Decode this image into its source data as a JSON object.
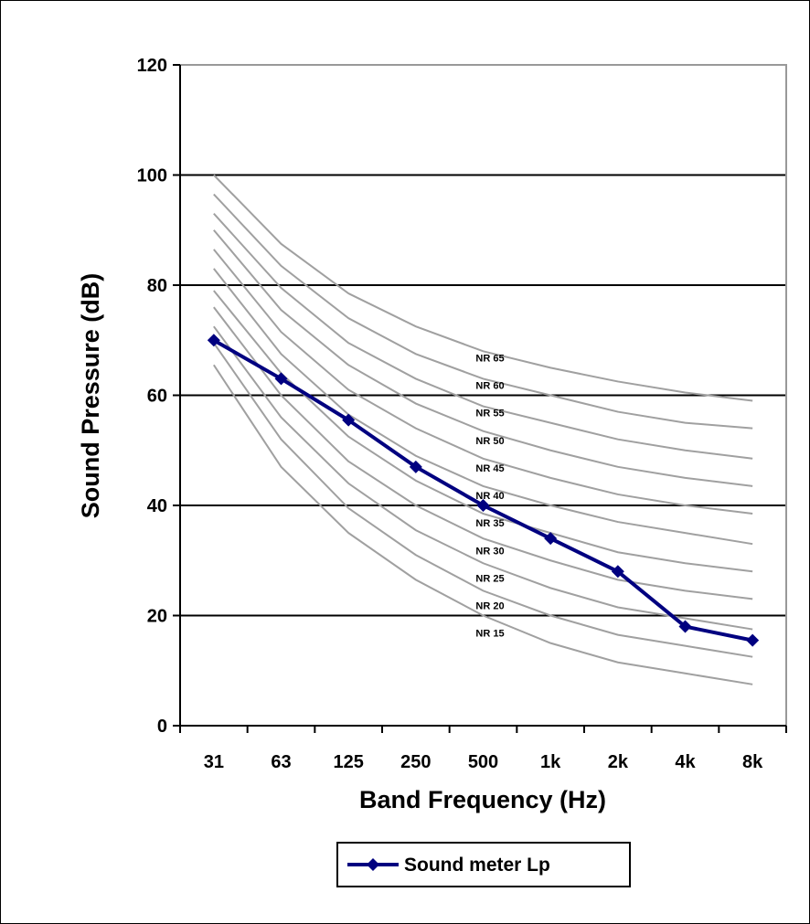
{
  "chart_data": {
    "type": "line",
    "xlabel": "Band Frequency (Hz)",
    "ylabel": "Sound Pressure (dB)",
    "categories": [
      "31",
      "63",
      "125",
      "250",
      "500",
      "1k",
      "2k",
      "4k",
      "8k"
    ],
    "ylim": [
      0,
      120
    ],
    "yticks": [
      "0",
      "20",
      "40",
      "60",
      "80",
      "100",
      "120"
    ],
    "grid": "horizontal major gridlines",
    "legend_position": "bottom",
    "series": [
      {
        "name": "Sound meter Lp",
        "values": [
          70,
          63,
          55.5,
          47,
          40,
          34,
          28,
          18,
          15.5
        ],
        "color": "#000080"
      }
    ],
    "reference_curves": [
      {
        "label": "NR 15",
        "values": [
          65.5,
          47,
          35,
          26.5,
          20,
          15,
          11.5,
          9.5,
          7.5
        ]
      },
      {
        "label": "NR 20",
        "values": [
          69.5,
          52,
          39.5,
          31,
          24.5,
          20,
          16.5,
          14.5,
          12.5
        ]
      },
      {
        "label": "NR 25",
        "values": [
          72.5,
          56,
          44,
          35.5,
          29.5,
          25,
          21.5,
          19.5,
          17.5
        ]
      },
      {
        "label": "NR 30",
        "values": [
          76,
          60,
          48,
          40,
          34,
          30,
          26.5,
          24.5,
          23
        ]
      },
      {
        "label": "NR 35",
        "values": [
          79,
          64,
          52.5,
          44.5,
          38.5,
          35,
          31.5,
          29.5,
          28
        ]
      },
      {
        "label": "NR 40",
        "values": [
          83,
          67.5,
          56.5,
          49,
          43.5,
          40,
          37,
          35,
          33
        ]
      },
      {
        "label": "NR 45",
        "values": [
          86.5,
          71.5,
          61,
          54,
          48.5,
          45,
          42,
          40,
          38.5
        ]
      },
      {
        "label": "NR 50",
        "values": [
          90,
          75.5,
          65.5,
          58.5,
          53.5,
          50,
          47,
          45,
          43.5
        ]
      },
      {
        "label": "NR 55",
        "values": [
          93,
          79.5,
          69.5,
          63,
          58,
          55,
          52,
          50,
          48.5
        ]
      },
      {
        "label": "NR 60",
        "values": [
          96.5,
          83.5,
          74,
          67.5,
          63,
          60,
          57,
          55,
          54
        ]
      },
      {
        "label": "NR 65",
        "values": [
          100,
          87.5,
          78.5,
          72.5,
          68,
          65,
          62.5,
          60.5,
          59
        ]
      }
    ],
    "colors": {
      "nr_curve": "#a0a0a0",
      "series": "#000080",
      "grid": "#000000",
      "plot_border": "#999999"
    }
  }
}
